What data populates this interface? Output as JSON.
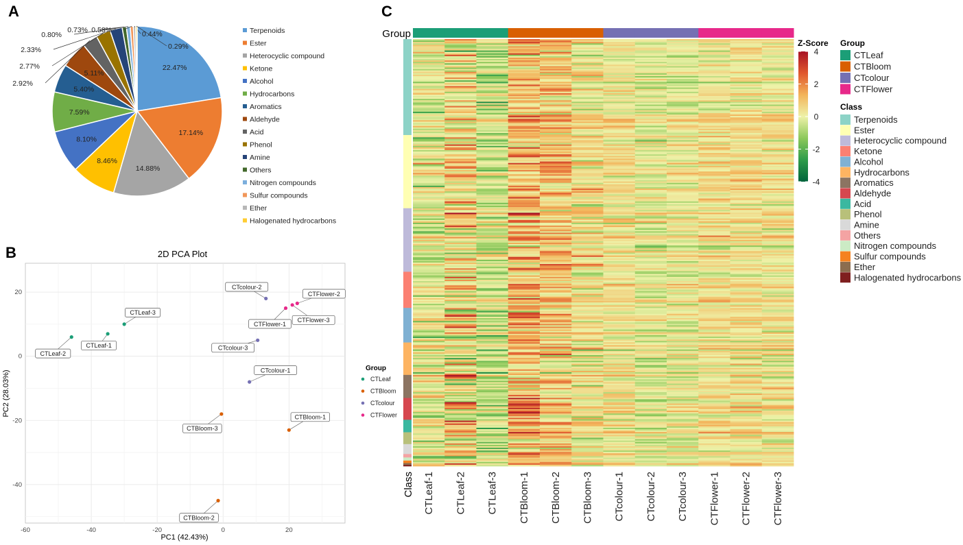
{
  "panels": {
    "a": "A",
    "b": "B",
    "c": "C"
  },
  "chart_data": [
    {
      "type": "pie",
      "panel": "A",
      "title": "",
      "categories": [
        "Terpenoids",
        "Ester",
        "Heterocyclic compound",
        "Ketone",
        "Alcohol",
        "Hydrocarbons",
        "Aromatics",
        "Aldehyde",
        "Acid",
        "Phenol",
        "Amine",
        "Others",
        "Nitrogen compounds",
        "Sulfur compounds",
        "Ether",
        "Halogenated hydrocarbons"
      ],
      "values": [
        22.47,
        17.14,
        14.88,
        8.46,
        8.1,
        7.59,
        5.4,
        5.11,
        2.92,
        2.77,
        2.33,
        0.8,
        0.73,
        0.58,
        0.44,
        0.29
      ],
      "labels": [
        "22.47%",
        "17.14%",
        "14.88%",
        "8.46%",
        "8.10%",
        "7.59%",
        "5.40%",
        "5.11%",
        "2.92%",
        "2.77%",
        "2.33%",
        "0.80%",
        "0.73%",
        "0.58%",
        "0.44%",
        "0.29%"
      ],
      "colors": [
        "#5b9bd5",
        "#ed7d31",
        "#a5a5a5",
        "#ffc000",
        "#4472c4",
        "#70ad47",
        "#255e91",
        "#9e480e",
        "#636363",
        "#997300",
        "#264478",
        "#43682b",
        "#7cafdd",
        "#f1975a",
        "#b7b7b7",
        "#ffcd33"
      ],
      "legend_position": "right"
    },
    {
      "type": "scatter",
      "panel": "B",
      "title": "2D PCA Plot",
      "xlabel": "PC1 (42.43%)",
      "ylabel": "PC2 (28.03%)",
      "xlim": [
        -60,
        37
      ],
      "ylim": [
        -52,
        29
      ],
      "xticks": [
        "-60",
        "-40",
        "-20",
        "0",
        "20"
      ],
      "xtick_values": [
        -60,
        -40,
        -20,
        0,
        20
      ],
      "yticks": [
        "20",
        "0",
        "-20",
        "-40"
      ],
      "ytick_values": [
        20,
        0,
        -20,
        -40
      ],
      "grid": true,
      "legend_title": "Group",
      "groups": [
        {
          "name": "CTLeaf",
          "color": "#1b9e77"
        },
        {
          "name": "CTBloom",
          "color": "#d95f02"
        },
        {
          "name": "CTcolour",
          "color": "#7570b3"
        },
        {
          "name": "CTFlower",
          "color": "#e7298a"
        }
      ],
      "points": [
        {
          "label": "CTLeaf-1",
          "group": 0,
          "x": -35,
          "y": 7
        },
        {
          "label": "CTLeaf-2",
          "group": 0,
          "x": -46,
          "y": 6
        },
        {
          "label": "CTLeaf-3",
          "group": 0,
          "x": -30,
          "y": 10
        },
        {
          "label": "CTBloom-1",
          "group": 1,
          "x": 20,
          "y": -23
        },
        {
          "label": "CTBloom-2",
          "group": 1,
          "x": -1.5,
          "y": -45
        },
        {
          "label": "CTBloom-3",
          "group": 1,
          "x": -0.5,
          "y": -18
        },
        {
          "label": "CTcolour-1",
          "group": 2,
          "x": 8,
          "y": -8
        },
        {
          "label": "CTcolour-2",
          "group": 2,
          "x": 13,
          "y": 18
        },
        {
          "label": "CTcolour-3",
          "group": 2,
          "x": 10.5,
          "y": 5
        },
        {
          "label": "CTFlower-1",
          "group": 3,
          "x": 19,
          "y": 15
        },
        {
          "label": "CTFlower-2",
          "group": 3,
          "x": 22.5,
          "y": 16.5
        },
        {
          "label": "CTFlower-3",
          "group": 3,
          "x": 21,
          "y": 16
        }
      ]
    },
    {
      "type": "heatmap",
      "panel": "C",
      "columns": [
        "CTLeaf-1",
        "CTLeaf-2",
        "CTLeaf-3",
        "CTBloom-1",
        "CTBloom-2",
        "CTBloom-3",
        "CTcolour-1",
        "CTcolour-2",
        "CTcolour-3",
        "CTFlower-1",
        "CTFlower-2",
        "CTFlower-3"
      ],
      "column_group_label": "Group",
      "row_annotation_label": "Class",
      "groups": [
        {
          "name": "CTLeaf",
          "color": "#1b9e77"
        },
        {
          "name": "CTBloom",
          "color": "#d95f02"
        },
        {
          "name": "CTcolour",
          "color": "#7570b3"
        },
        {
          "name": "CTFlower",
          "color": "#e7298a"
        }
      ],
      "column_group_index": [
        0,
        0,
        0,
        1,
        1,
        1,
        2,
        2,
        2,
        3,
        3,
        3
      ],
      "column_bias": [
        -0.2,
        0.4,
        -0.6,
        1.1,
        0.9,
        0.2,
        0.25,
        -0.15,
        -0.05,
        0.3,
        0.35,
        0.2
      ],
      "column_spread": [
        1.3,
        2.3,
        1.3,
        1.7,
        1.5,
        1.1,
        0.8,
        0.8,
        0.8,
        0.75,
        0.75,
        0.75
      ],
      "legend_group_title": "Group",
      "legend_class_title": "Class",
      "classes": [
        {
          "name": "Terpenoids",
          "color": "#8dd3c7",
          "share": 22.47
        },
        {
          "name": "Ester",
          "color": "#ffffb3",
          "share": 17.14
        },
        {
          "name": "Heterocyclic compound",
          "color": "#bebada",
          "share": 14.88
        },
        {
          "name": "Ketone",
          "color": "#fb8072",
          "share": 8.46
        },
        {
          "name": "Alcohol",
          "color": "#80b1d3",
          "share": 8.1
        },
        {
          "name": "Hydrocarbons",
          "color": "#fdb462",
          "share": 7.59
        },
        {
          "name": "Aromatics",
          "color": "#8c7462",
          "share": 5.4
        },
        {
          "name": "Aldehyde",
          "color": "#d6474f",
          "share": 5.11
        },
        {
          "name": "Acid",
          "color": "#3bb8a0",
          "share": 2.92
        },
        {
          "name": "Phenol",
          "color": "#b8c07a",
          "share": 2.77
        },
        {
          "name": "Amine",
          "color": "#d9d9d9",
          "share": 2.33
        },
        {
          "name": "Others",
          "color": "#f4a3a3",
          "share": 0.8
        },
        {
          "name": "Nitrogen compounds",
          "color": "#ccebc5",
          "share": 0.73
        },
        {
          "name": "Sulfur compounds",
          "color": "#f58220",
          "share": 0.58
        },
        {
          "name": "Ether",
          "color": "#8c6d4f",
          "share": 0.44
        },
        {
          "name": "Halogenated hydrocarbons",
          "color": "#7f1f1f",
          "share": 0.29
        }
      ],
      "colorbar_title": "Z-Score",
      "colorbar_range": [
        -4,
        4
      ],
      "colorbar_ticks": [
        "4",
        "2",
        "0",
        "-2",
        "-4"
      ],
      "colorbar_tick_values": [
        4,
        2,
        0,
        -2,
        -4
      ],
      "color_stops": [
        "#00643c",
        "#2e9c4a",
        "#8cc85a",
        "#eef2a8",
        "#f3b35a",
        "#e0572e",
        "#a81325"
      ],
      "row_count": 300,
      "seed": 7
    }
  ]
}
